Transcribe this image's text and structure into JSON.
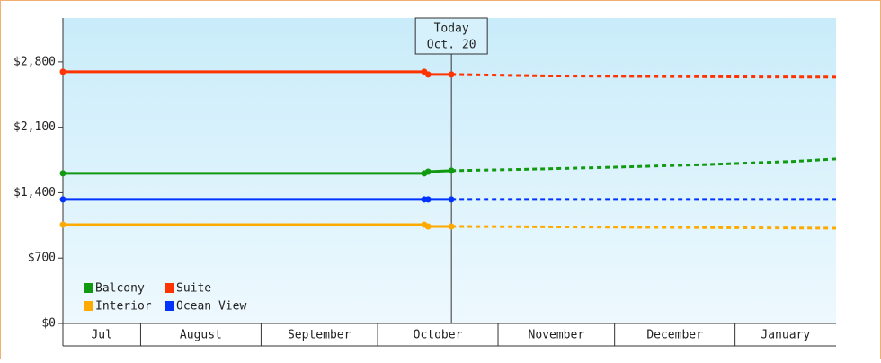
{
  "chart_data": {
    "type": "line",
    "xlim": [
      0,
      199
    ],
    "xticks": [
      {
        "value": 0,
        "label": "Jul"
      },
      {
        "value": 20,
        "label": "August"
      },
      {
        "value": 51,
        "label": "September"
      },
      {
        "value": 81,
        "label": "October"
      },
      {
        "value": 112,
        "label": "November"
      },
      {
        "value": 142,
        "label": "December"
      },
      {
        "value": 173,
        "label": "January"
      }
    ],
    "ylim": [
      0,
      3270
    ],
    "yticks": [
      {
        "value": 0,
        "label": "$0"
      },
      {
        "value": 700,
        "label": "$700"
      },
      {
        "value": 1400,
        "label": "$1,400"
      },
      {
        "value": 2100,
        "label": "$2,100"
      },
      {
        "value": 2800,
        "label": "$2,800"
      }
    ],
    "today": {
      "x": 100,
      "label": "Today",
      "date": "Oct. 20"
    },
    "series": [
      {
        "name": "Balcony",
        "color": "#119911",
        "x": [
          0,
          93,
          94,
          100,
          118,
          141,
          165,
          188,
          199
        ],
        "values": [
          1607,
          1607,
          1625,
          1636,
          1650,
          1672,
          1700,
          1735,
          1761
        ]
      },
      {
        "name": "Suite",
        "color": "#ff3300",
        "x": [
          0,
          93,
          94,
          100,
          125,
          174,
          199
        ],
        "values": [
          2694,
          2694,
          2665,
          2665,
          2650,
          2640,
          2637
        ]
      },
      {
        "name": "Interior",
        "color": "#ffaa00",
        "x": [
          0,
          93,
          94,
          100,
          150,
          199
        ],
        "values": [
          1058,
          1058,
          1039,
          1039,
          1030,
          1020
        ]
      },
      {
        "name": "Ocean View",
        "color": "#0033ff",
        "x": [
          0,
          93,
          94,
          100,
          199
        ],
        "values": [
          1328,
          1328,
          1328,
          1328,
          1328
        ]
      }
    ]
  }
}
